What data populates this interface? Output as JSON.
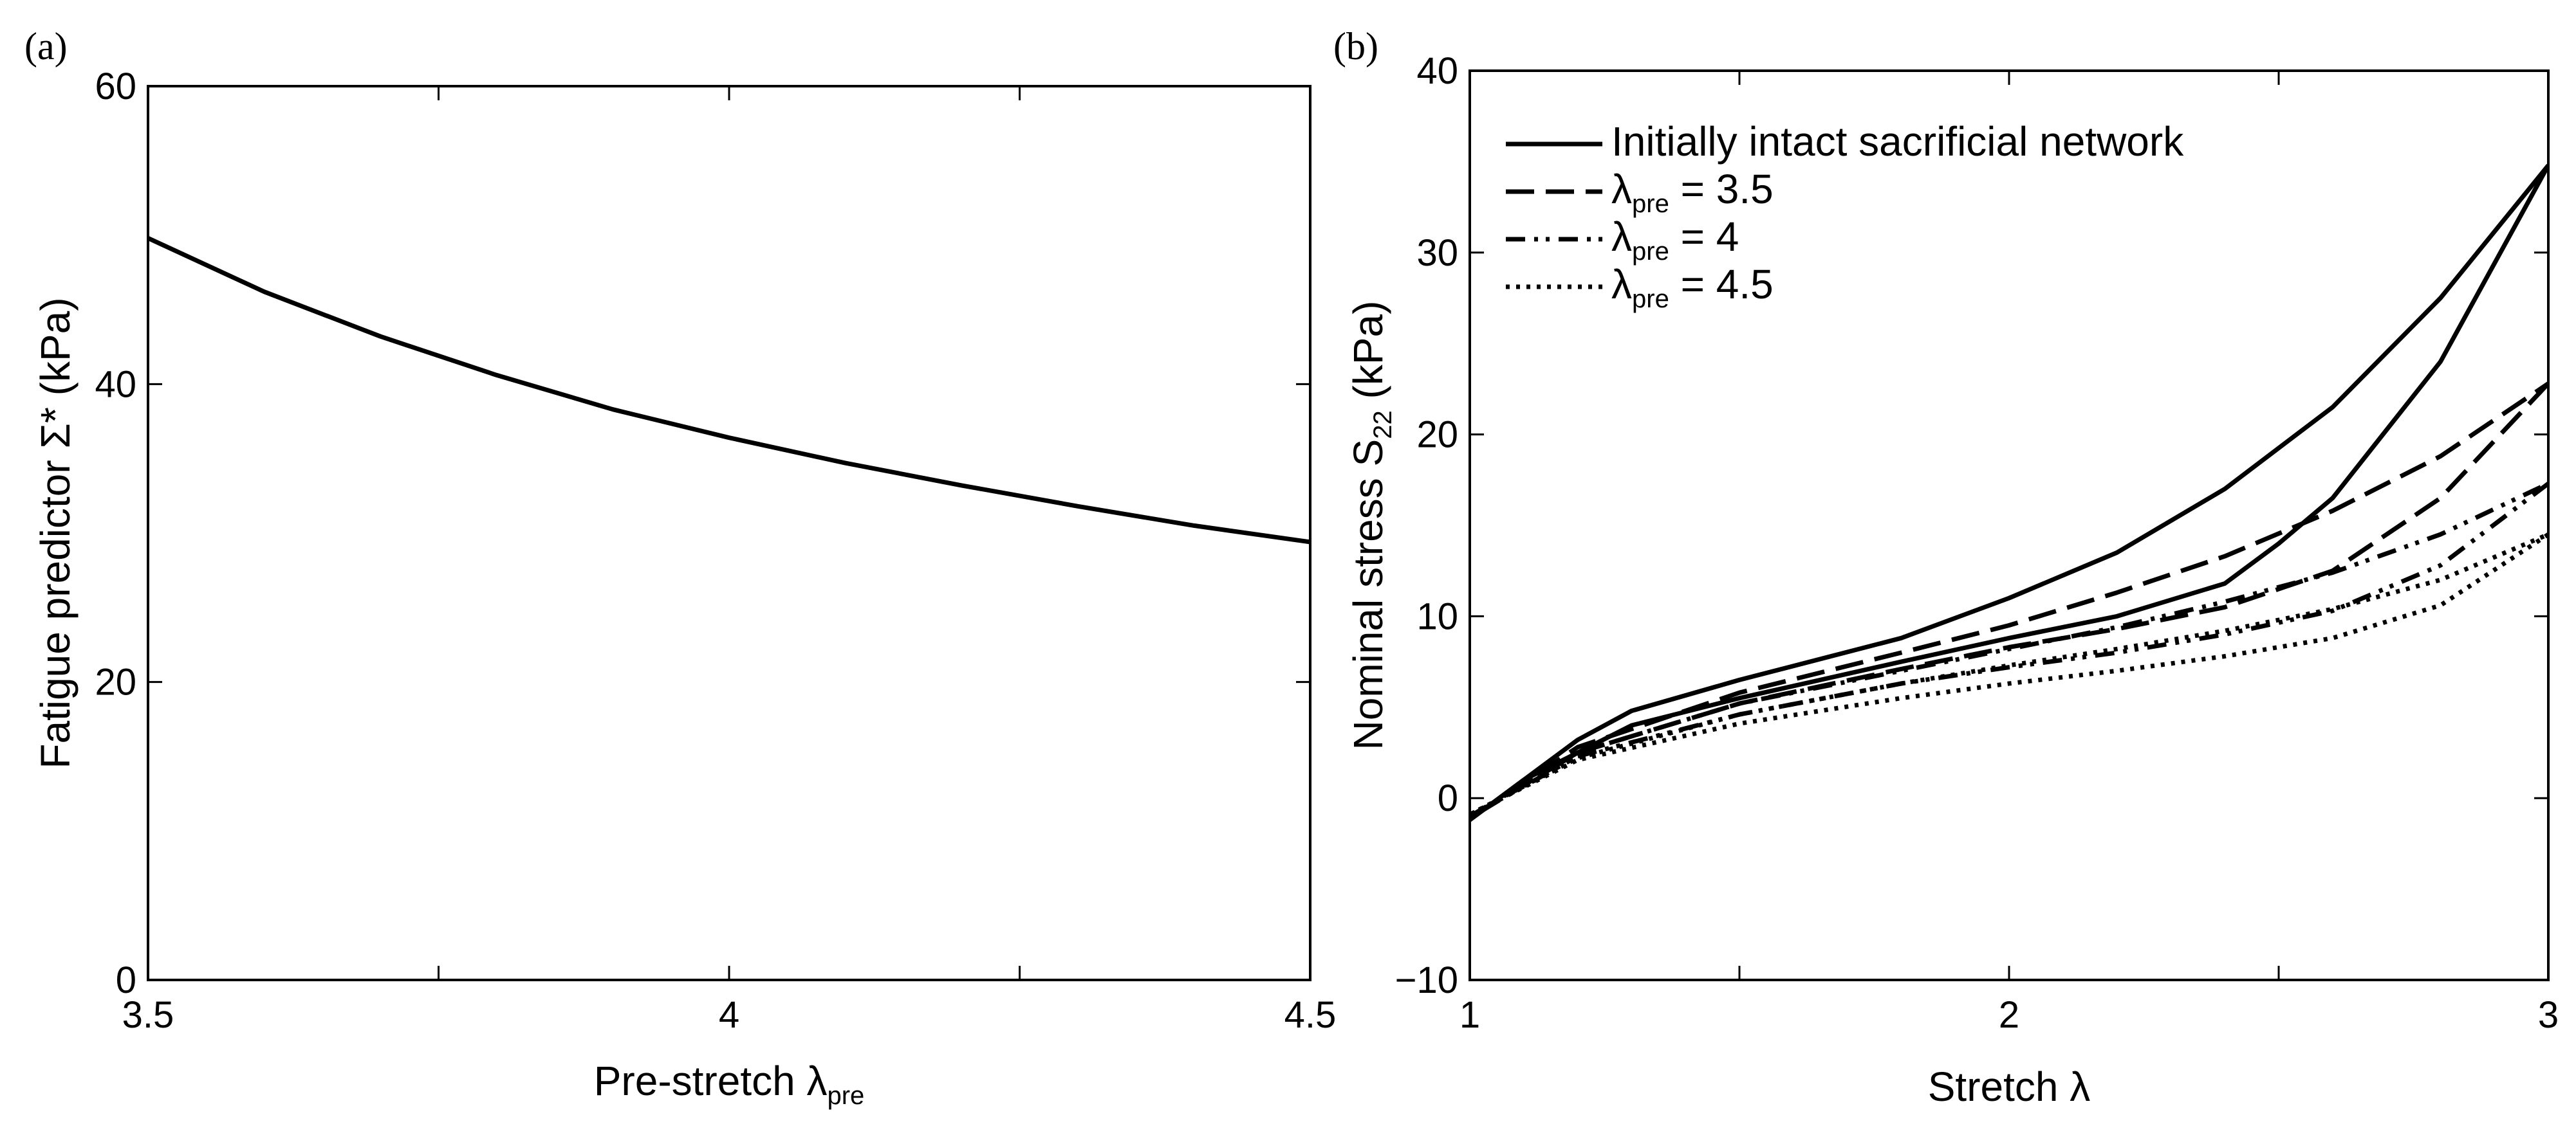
{
  "chart_data": [
    {
      "panel_label": "(a)",
      "type": "line",
      "xlabel_main": "Pre-stretch λ",
      "xlabel_sub": "pre",
      "ylabel": "Fatigue predictor Σ* (kPa)",
      "xlim": [
        3.5,
        4.5
      ],
      "ylim": [
        0,
        60
      ],
      "xticks": [
        3.5,
        3.75,
        4.0,
        4.25,
        4.5
      ],
      "xtick_labels": [
        "3.5",
        "",
        "4",
        "",
        "4.5"
      ],
      "yticks": [
        0,
        20,
        40,
        60
      ],
      "ytick_labels": [
        "0",
        "20",
        "40",
        "60"
      ],
      "series": [
        {
          "name": "Fatigue predictor",
          "style": "solid",
          "x": [
            3.5,
            3.6,
            3.7,
            3.8,
            3.9,
            4.0,
            4.1,
            4.2,
            4.3,
            4.4,
            4.5
          ],
          "y": [
            49.8,
            46.2,
            43.2,
            40.6,
            38.3,
            36.4,
            34.7,
            33.2,
            31.8,
            30.5,
            29.4
          ]
        }
      ]
    },
    {
      "panel_label": "(b)",
      "type": "line",
      "xlabel": "Stretch λ",
      "ylabel_main": "Nominal stress S",
      "ylabel_sub": "22",
      "ylabel_suffix": " (kPa)",
      "xlim": [
        1,
        3
      ],
      "ylim": [
        -10,
        40
      ],
      "xticks": [
        1,
        1.5,
        2,
        2.5,
        3
      ],
      "xtick_labels": [
        "1",
        "",
        "2",
        "",
        "3"
      ],
      "yticks": [
        -10,
        0,
        10,
        20,
        30,
        40
      ],
      "ytick_labels": [
        "−10",
        "0",
        "10",
        "20",
        "30",
        "40"
      ],
      "legend": {
        "position": "top-left",
        "entries": [
          {
            "style": "solid",
            "text": "Initially intact sacrificial network"
          },
          {
            "style": "dashed",
            "prefix": "λ",
            "sub": "pre",
            "suffix": " = 3.5"
          },
          {
            "style": "dashdotdot",
            "prefix": "λ",
            "sub": "pre",
            "suffix": " = 4"
          },
          {
            "style": "dotted",
            "prefix": "λ",
            "sub": "pre",
            "suffix": " = 4.5"
          }
        ]
      },
      "series": [
        {
          "name": "Initially intact (loading)",
          "style": "solid",
          "x": [
            1.0,
            1.1,
            1.2,
            1.3,
            1.5,
            1.8,
            2.0,
            2.2,
            2.4,
            2.6,
            2.8,
            3.0
          ],
          "y": [
            -1.2,
            1.0,
            3.2,
            4.8,
            6.5,
            8.8,
            11.0,
            13.5,
            17.0,
            21.5,
            27.5,
            34.8
          ]
        },
        {
          "name": "Initially intact (unloading)",
          "style": "solid",
          "x": [
            3.0,
            2.8,
            2.6,
            2.5,
            2.4,
            2.2,
            2.0,
            1.8,
            1.5,
            1.3,
            1.1,
            1.0
          ],
          "y": [
            34.8,
            24.0,
            16.5,
            14.0,
            11.8,
            10.0,
            8.8,
            7.5,
            5.5,
            4.0,
            1.0,
            -1.2
          ]
        },
        {
          "name": "λpre = 3.5 (loading)",
          "style": "dashed",
          "x": [
            1.0,
            1.2,
            1.5,
            1.8,
            2.0,
            2.2,
            2.4,
            2.6,
            2.8,
            3.0
          ],
          "y": [
            -1.1,
            2.8,
            5.8,
            8.0,
            9.5,
            11.3,
            13.3,
            15.8,
            18.8,
            22.8
          ]
        },
        {
          "name": "λpre = 3.5 (unloading)",
          "style": "dashed",
          "x": [
            3.0,
            2.8,
            2.6,
            2.4,
            2.2,
            2.0,
            1.8,
            1.5,
            1.2,
            1.0
          ],
          "y": [
            22.8,
            16.5,
            12.5,
            10.5,
            9.3,
            8.3,
            7.1,
            5.2,
            2.5,
            -1.1
          ]
        },
        {
          "name": "λpre = 4 (loading)",
          "style": "dashdotdot",
          "x": [
            1.0,
            1.2,
            1.5,
            1.8,
            2.0,
            2.2,
            2.4,
            2.6,
            2.8,
            3.0
          ],
          "y": [
            -1.0,
            2.5,
            5.2,
            7.0,
            8.2,
            9.4,
            10.8,
            12.4,
            14.5,
            17.3
          ]
        },
        {
          "name": "λpre = 4 (unloading)",
          "style": "dashdotdot",
          "x": [
            3.0,
            2.8,
            2.6,
            2.4,
            2.2,
            2.0,
            1.8,
            1.5,
            1.2,
            1.0
          ],
          "y": [
            17.3,
            12.8,
            10.3,
            9.0,
            8.0,
            7.2,
            6.3,
            4.6,
            2.3,
            -1.0
          ]
        },
        {
          "name": "λpre = 4.5 (loading)",
          "style": "dotted",
          "x": [
            1.0,
            1.2,
            1.5,
            1.8,
            2.0,
            2.2,
            2.4,
            2.6,
            2.8,
            3.0
          ],
          "y": [
            -0.9,
            2.2,
            4.6,
            6.3,
            7.3,
            8.2,
            9.2,
            10.4,
            12.0,
            14.5
          ]
        },
        {
          "name": "λpre = 4.5 (unloading)",
          "style": "dotted",
          "x": [
            3.0,
            2.8,
            2.6,
            2.4,
            2.2,
            2.0,
            1.8,
            1.5,
            1.2,
            1.0
          ],
          "y": [
            14.5,
            10.6,
            8.8,
            7.8,
            7.0,
            6.3,
            5.5,
            4.1,
            2.1,
            -0.9
          ]
        }
      ]
    }
  ]
}
